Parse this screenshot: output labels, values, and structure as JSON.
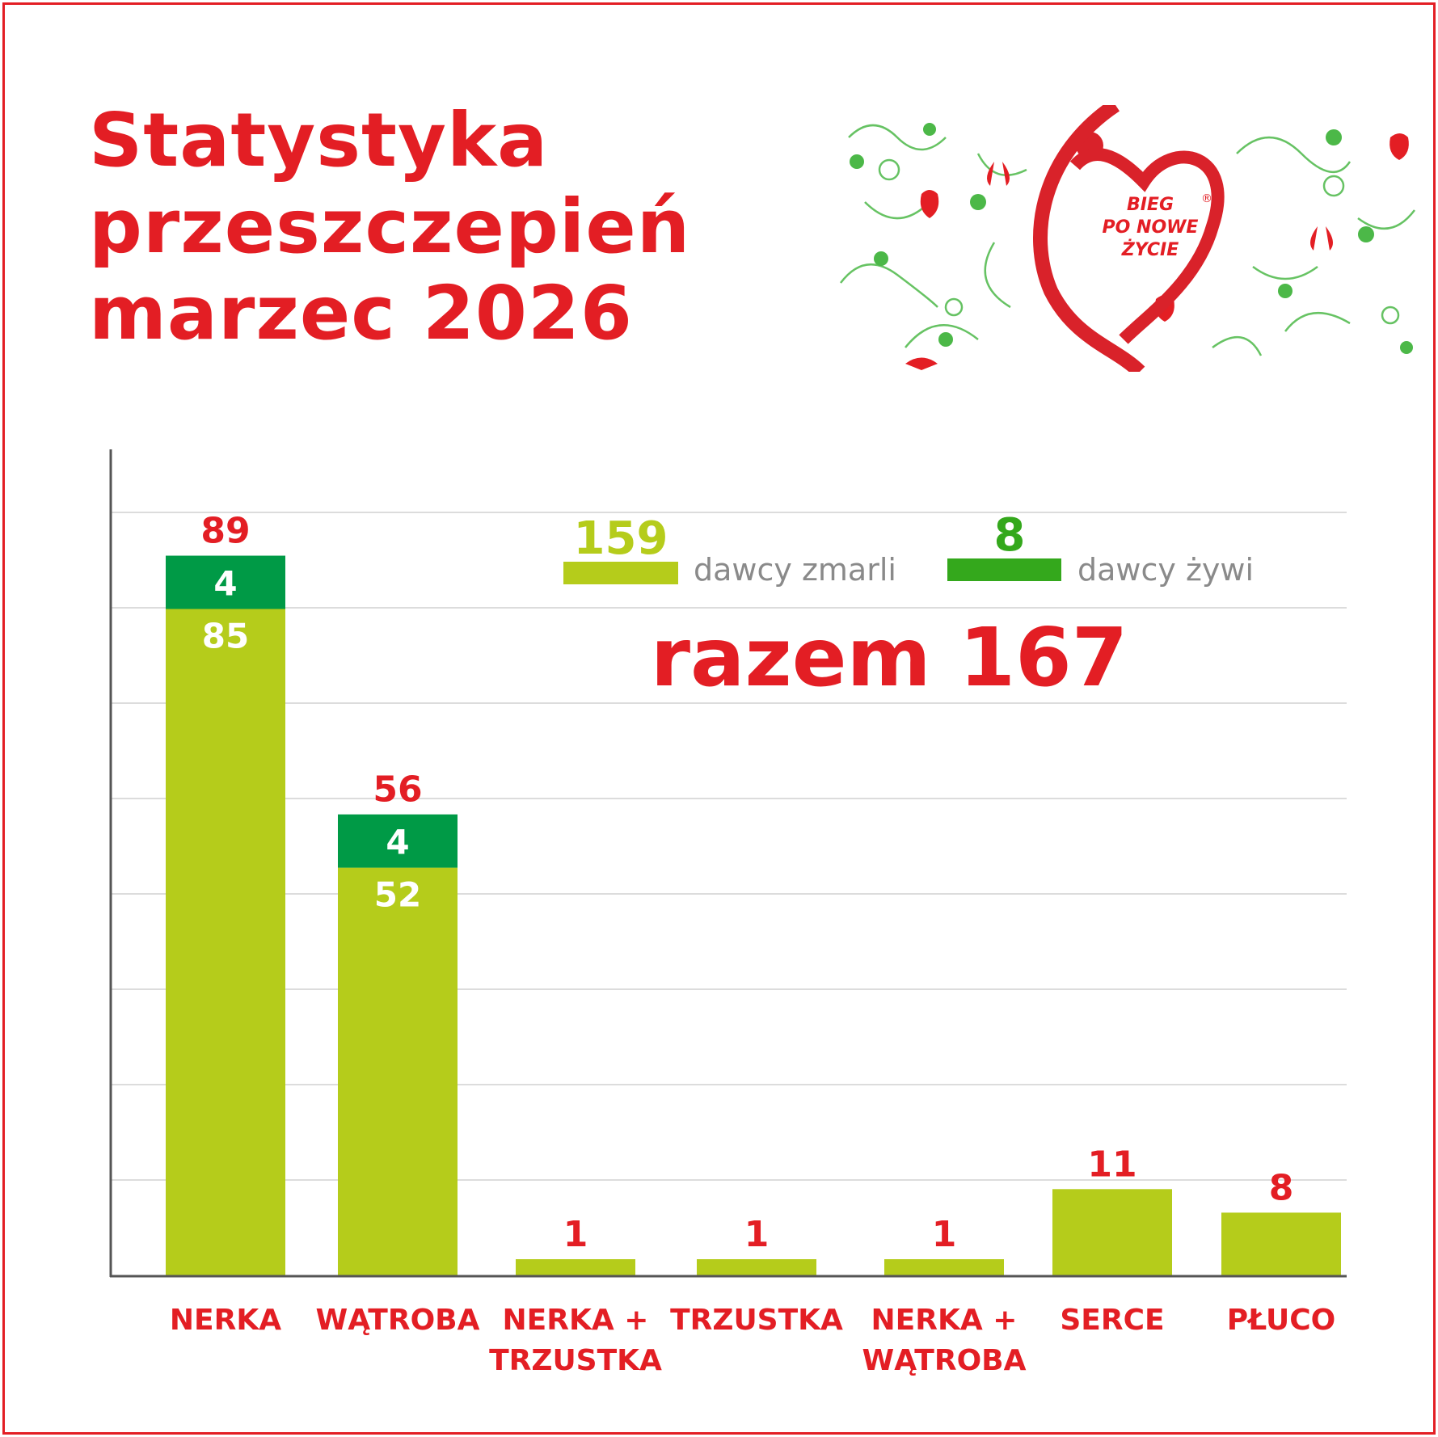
{
  "title": [
    "Statystyka",
    "przeszczepień",
    "marzec 2026"
  ],
  "logo": {
    "text": [
      "BIEG",
      "PO NOWE",
      "ŻYCIE"
    ],
    "mark": "®"
  },
  "colors": {
    "red": "#e31e24",
    "deceased": "#b5cc1b",
    "living": "#009a46",
    "legend_living": "#34a81c",
    "grid": "#dcdcdc",
    "legend_text": "#8a8a8a"
  },
  "legend": {
    "deceased": {
      "value": "159",
      "label": "dawcy zmarli"
    },
    "living": {
      "value": "8",
      "label": "dawcy żywi"
    }
  },
  "total": "razem 167",
  "chart_data": {
    "type": "bar",
    "stacked": true,
    "categories": [
      [
        "NERKA"
      ],
      [
        "WĄTROBA"
      ],
      [
        "NERKA +",
        "TRZUSTKA"
      ],
      [
        "TRZUSTKA"
      ],
      [
        "NERKA +",
        "WĄTROBA"
      ],
      [
        "SERCE"
      ],
      [
        "PŁUCO"
      ]
    ],
    "series": [
      {
        "name": "dawcy zmarli",
        "values": [
          85,
          52,
          1,
          1,
          1,
          11,
          8
        ]
      },
      {
        "name": "dawcy żywi",
        "values": [
          4,
          4,
          0,
          0,
          0,
          0,
          0
        ]
      }
    ],
    "totals": [
      89,
      56,
      1,
      1,
      1,
      11,
      8
    ],
    "grid": true,
    "legend_position": "top-right"
  }
}
